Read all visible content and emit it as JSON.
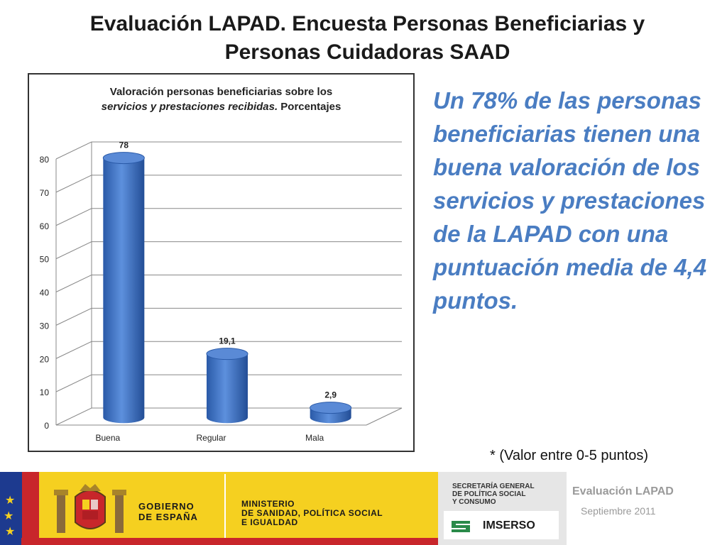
{
  "slide": {
    "title_line1": "Evaluación LAPAD.  Encuesta Personas Beneficiarias y",
    "title_line2": "Personas  Cuidadoras SAAD",
    "side_text": "Un 78% de las personas beneficiarias tienen una buena valoración de  los servicios  y prestaciones de la LAPAD con una puntuación media de 4,4 puntos.",
    "note": "* (Valor entre 0-5 puntos)"
  },
  "chart_data": {
    "type": "bar",
    "title_part1": "Valoración personas beneficiarias sobre los",
    "title_part2_italic": "servicios y prestaciones recibidas.",
    "title_part3": " Porcentajes",
    "categories": [
      "Buena",
      "Regular",
      "Mala"
    ],
    "values": [
      78,
      19.1,
      2.9
    ],
    "data_labels": [
      "78",
      "19,1",
      "2,9"
    ],
    "yticks": [
      "0",
      "10",
      "20",
      "30",
      "40",
      "50",
      "60",
      "70",
      "80"
    ],
    "ylim": [
      0,
      80
    ],
    "grid": true,
    "bar_color": "#3e6fc0",
    "legend": "none"
  },
  "footer": {
    "gov_line1": "GOBIERNO",
    "gov_line2": "DE ESPAÑA",
    "ministry_line1": "MINISTERIO",
    "ministry_line2": "DE SANIDAD, POLÍTICA SOCIAL",
    "ministry_line3": "E IGUALDAD",
    "sec_line1": "SECRETARÍA GENERAL",
    "sec_line2": "DE POLÍTICA SOCIAL",
    "sec_line3": "Y CONSUMO",
    "imserso": "IMSERSO",
    "eval_label": "Evaluación LAPAD",
    "eval_date": "Septiembre 2011",
    "colors": {
      "blue": "#1d3a8f",
      "red": "#c8262b",
      "yellow": "#f5d020"
    }
  }
}
